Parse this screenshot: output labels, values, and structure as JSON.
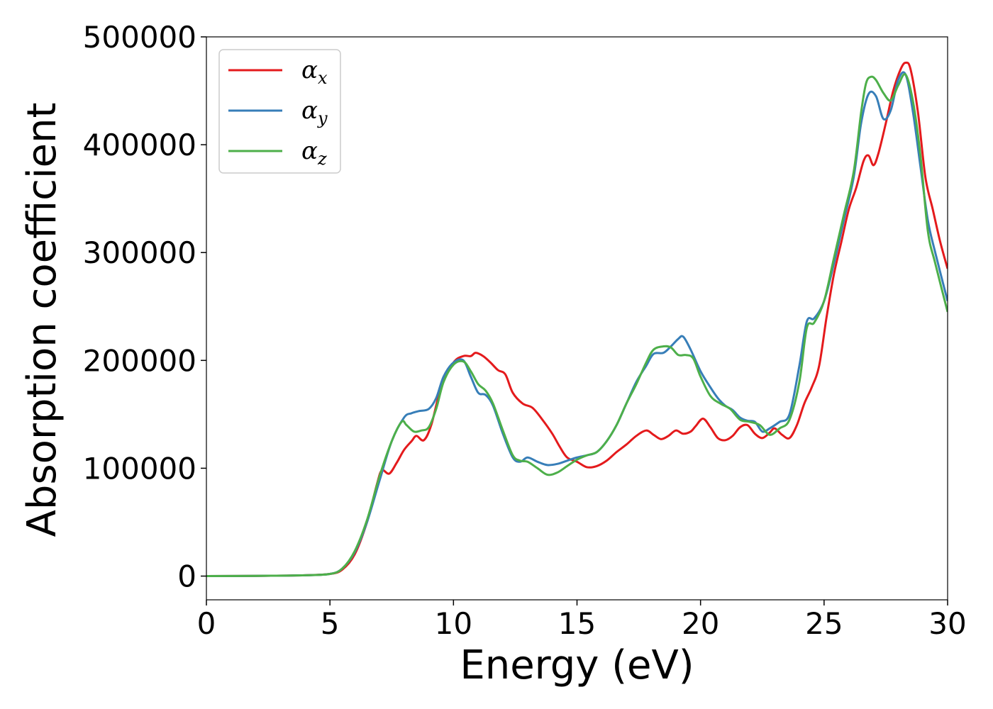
{
  "chart_data": {
    "type": "line",
    "xlabel": "Energy (eV)",
    "ylabel": "Absorption coefficient",
    "xlim": [
      0,
      30
    ],
    "ylim": [
      -22000,
      500000
    ],
    "xticks": [
      "0",
      "5",
      "10",
      "15",
      "20",
      "25",
      "30"
    ],
    "yticks": [
      "0",
      "100000",
      "200000",
      "300000",
      "400000",
      "500000"
    ],
    "grid": false,
    "legend_position": "top-left",
    "series": [
      {
        "name": "α",
        "subscript": "x",
        "color": "#e41a1c",
        "x": [
          0,
          2,
          4,
          5,
          5.5,
          6,
          6.5,
          6.9,
          7.1,
          7.4,
          7.7,
          8.0,
          8.3,
          8.5,
          8.8,
          9.1,
          9.5,
          10.0,
          10.4,
          10.7,
          10.9,
          11.2,
          11.5,
          11.8,
          12.1,
          12.4,
          12.8,
          13.2,
          13.6,
          14.0,
          14.3,
          14.6,
          15.0,
          15.4,
          15.8,
          16.2,
          16.6,
          17.0,
          17.4,
          17.8,
          18.1,
          18.4,
          18.7,
          19.0,
          19.3,
          19.6,
          19.8,
          20.1,
          20.4,
          20.7,
          21.0,
          21.3,
          21.6,
          21.9,
          22.2,
          22.5,
          22.8,
          23.0,
          23.3,
          23.6,
          23.9,
          24.2,
          24.5,
          24.8,
          25.1,
          25.4,
          25.7,
          26.0,
          26.3,
          26.6,
          26.8,
          27.0,
          27.2,
          27.5,
          27.8,
          28.1,
          28.3,
          28.5,
          28.8,
          29.1,
          29.4,
          29.7,
          30.0
        ],
        "y": [
          0,
          200,
          800,
          2000,
          6000,
          20000,
          50000,
          85000,
          98000,
          95000,
          105000,
          117000,
          125000,
          130000,
          126000,
          140000,
          175000,
          198000,
          204000,
          204000,
          207000,
          204000,
          198000,
          191000,
          187000,
          170000,
          160000,
          156000,
          145000,
          132000,
          120000,
          110000,
          106000,
          101000,
          102000,
          107000,
          115000,
          122000,
          130000,
          135000,
          131000,
          127000,
          130000,
          135000,
          132000,
          134000,
          139000,
          146000,
          138000,
          128000,
          126000,
          130000,
          138000,
          140000,
          132000,
          128000,
          133000,
          137000,
          131000,
          128000,
          140000,
          160000,
          175000,
          195000,
          240000,
          280000,
          310000,
          340000,
          360000,
          385000,
          390000,
          381000,
          392000,
          420000,
          450000,
          470000,
          476000,
          470000,
          430000,
          370000,
          340000,
          310000,
          285000
        ]
      },
      {
        "name": "α",
        "subscript": "y",
        "color": "#377eb8",
        "x": [
          0,
          2,
          4,
          5,
          5.5,
          6,
          6.5,
          7.0,
          7.5,
          8.0,
          8.3,
          8.6,
          9.0,
          9.3,
          9.6,
          10.0,
          10.4,
          10.7,
          11.0,
          11.3,
          11.6,
          12.0,
          12.4,
          12.7,
          13.0,
          13.4,
          13.8,
          14.2,
          14.6,
          15.0,
          15.4,
          15.8,
          16.2,
          16.6,
          17.0,
          17.4,
          17.8,
          18.1,
          18.5,
          18.8,
          19.1,
          19.3,
          19.6,
          20.0,
          20.4,
          20.7,
          21.0,
          21.3,
          21.6,
          21.9,
          22.2,
          22.5,
          22.8,
          23.2,
          23.6,
          24.0,
          24.3,
          24.6,
          25.0,
          25.4,
          25.8,
          26.2,
          26.5,
          26.8,
          27.1,
          27.4,
          27.7,
          28.0,
          28.3,
          28.6,
          28.9,
          29.2,
          29.5,
          30.0
        ],
        "y": [
          0,
          200,
          800,
          2000,
          7000,
          22000,
          50000,
          88000,
          125000,
          147000,
          151000,
          153000,
          155000,
          165000,
          185000,
          198000,
          200000,
          185000,
          170000,
          168000,
          158000,
          132000,
          110000,
          106000,
          110000,
          106000,
          103000,
          104000,
          107000,
          110000,
          112000,
          115000,
          125000,
          140000,
          160000,
          180000,
          195000,
          206000,
          207000,
          213000,
          220000,
          222000,
          210000,
          190000,
          175000,
          165000,
          158000,
          154000,
          147000,
          144000,
          143000,
          134000,
          137000,
          143000,
          150000,
          195000,
          236000,
          239000,
          255000,
          290000,
          330000,
          370000,
          420000,
          447000,
          445000,
          424000,
          432000,
          460000,
          465000,
          430000,
          380000,
          330000,
          300000,
          255000
        ]
      },
      {
        "name": "α",
        "subscript": "z",
        "color": "#4daf4a",
        "x": [
          0,
          2,
          4,
          5,
          5.5,
          6,
          6.5,
          7.0,
          7.5,
          7.9,
          8.1,
          8.4,
          8.7,
          9.0,
          9.3,
          9.6,
          10.0,
          10.4,
          10.7,
          11.0,
          11.3,
          11.6,
          12.0,
          12.4,
          12.7,
          13.0,
          13.4,
          13.8,
          14.2,
          14.6,
          15.0,
          15.4,
          15.8,
          16.2,
          16.6,
          17.0,
          17.4,
          17.8,
          18.1,
          18.5,
          18.8,
          19.1,
          19.4,
          19.7,
          20.0,
          20.4,
          20.8,
          21.2,
          21.6,
          22.0,
          22.4,
          22.8,
          23.2,
          23.6,
          24.0,
          24.3,
          24.6,
          25.0,
          25.4,
          25.8,
          26.2,
          26.5,
          26.7,
          26.9,
          27.1,
          27.4,
          27.7,
          28.0,
          28.3,
          28.6,
          28.9,
          29.2,
          29.5,
          30.0
        ],
        "y": [
          0,
          200,
          800,
          2000,
          7000,
          23000,
          52000,
          92000,
          125000,
          143000,
          140000,
          134000,
          135000,
          138000,
          155000,
          180000,
          196000,
          199000,
          190000,
          178000,
          172000,
          160000,
          135000,
          112000,
          107000,
          106000,
          100000,
          94000,
          96000,
          102000,
          108000,
          112000,
          115000,
          125000,
          140000,
          160000,
          178000,
          198000,
          210000,
          213000,
          212000,
          205000,
          205000,
          202000,
          185000,
          167000,
          160000,
          155000,
          145000,
          143000,
          140000,
          131000,
          137000,
          145000,
          180000,
          230000,
          235000,
          255000,
          295000,
          335000,
          375000,
          430000,
          457000,
          463000,
          460000,
          448000,
          441000,
          455000,
          465000,
          440000,
          390000,
          320000,
          290000,
          245000
        ]
      }
    ]
  }
}
